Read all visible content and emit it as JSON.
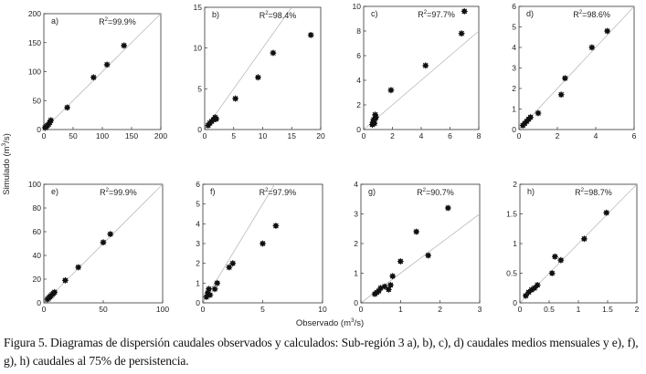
{
  "figure": {
    "xlabel": "Observado (m",
    "xlabel_sup": "3",
    "xlabel_tail": "/s)",
    "ylabel": "Simulado (m",
    "ylabel_sup": "3",
    "ylabel_tail": "/s)",
    "caption": "Figura 5. Diagramas de dispersión caudales observados y calculados: Sub-región 3 a), b), c), d) caudales medios mensuales y e), f), g), h) caudales al 75% de persistencia."
  },
  "colors": {
    "points": "#111111",
    "reference_line": "#bbbbbb",
    "axes": "#333333"
  },
  "chart_data": [
    {
      "type": "scatter",
      "label": "a)",
      "r2_prefix": "R",
      "r2_sup": "2",
      "r2_value": "=99.9%",
      "xlim": [
        0,
        200
      ],
      "ylim": [
        0,
        200
      ],
      "xticks": [
        0,
        50,
        100,
        150,
        200
      ],
      "yticks": [
        0,
        50,
        100,
        150,
        200
      ],
      "reference_line": "1:1",
      "x": [
        2,
        4,
        6,
        8,
        10,
        12,
        40,
        85,
        108,
        137
      ],
      "y": [
        3,
        5,
        7,
        9,
        12,
        16,
        38,
        90,
        112,
        145
      ]
    },
    {
      "type": "scatter",
      "label": "b)",
      "r2_prefix": "R",
      "r2_sup": "2",
      "r2_value": "=98.4%",
      "xlim": [
        0,
        20
      ],
      "ylim": [
        0,
        15
      ],
      "xticks": [
        0,
        5,
        10,
        15,
        20
      ],
      "yticks": [
        0,
        5,
        10,
        15
      ],
      "reference_line": "1:1",
      "x": [
        0.6,
        0.9,
        1.2,
        1.5,
        1.8,
        2.0,
        5.3,
        9.2,
        11.8,
        18.3
      ],
      "y": [
        0.5,
        0.8,
        1.0,
        1.2,
        1.5,
        1.3,
        3.8,
        6.4,
        9.4,
        11.6
      ]
    },
    {
      "type": "scatter",
      "label": "c)",
      "r2_prefix": "R",
      "r2_sup": "2",
      "r2_value": "=97.7%",
      "xlim": [
        0,
        8
      ],
      "ylim": [
        0,
        10
      ],
      "xticks": [
        0,
        2,
        4,
        6,
        8
      ],
      "yticks": [
        0,
        2,
        4,
        6,
        8,
        10
      ],
      "reference_line": "1:1",
      "x": [
        0.6,
        0.65,
        0.7,
        0.75,
        0.8,
        0.8,
        0.85,
        1.9,
        4.3,
        6.8,
        7.0
      ],
      "y": [
        0.4,
        0.6,
        0.8,
        0.5,
        0.9,
        1.2,
        1.0,
        3.2,
        5.2,
        7.8,
        9.6
      ]
    },
    {
      "type": "scatter",
      "label": "d)",
      "r2_prefix": "R",
      "r2_sup": "2",
      "r2_value": "=98.6%",
      "xlim": [
        0,
        6
      ],
      "ylim": [
        0,
        6
      ],
      "xticks": [
        0,
        2,
        4,
        6
      ],
      "yticks": [
        0,
        1,
        2,
        3,
        4,
        5,
        6
      ],
      "reference_line": "1:1",
      "x": [
        0.2,
        0.3,
        0.4,
        0.5,
        0.6,
        1.0,
        2.2,
        2.4,
        3.8,
        4.6
      ],
      "y": [
        0.2,
        0.3,
        0.4,
        0.5,
        0.6,
        0.8,
        1.7,
        2.5,
        4.0,
        4.8
      ]
    },
    {
      "type": "scatter",
      "label": "e)",
      "r2_prefix": "R",
      "r2_sup": "2",
      "r2_value": "=99.9%",
      "xlim": [
        0,
        100
      ],
      "ylim": [
        0,
        100
      ],
      "xticks": [
        0,
        50,
        100
      ],
      "yticks": [
        0,
        20,
        40,
        60,
        80,
        100
      ],
      "reference_line": "1:1",
      "x": [
        3,
        4,
        5,
        6,
        7,
        8,
        9,
        18,
        29,
        50,
        56
      ],
      "y": [
        3,
        4,
        5,
        6,
        7,
        8,
        9,
        19,
        30,
        51,
        58
      ]
    },
    {
      "type": "scatter",
      "label": "f)",
      "r2_prefix": "R",
      "r2_sup": "2",
      "r2_value": "=97.9%",
      "xlim": [
        0,
        10
      ],
      "ylim": [
        0,
        6
      ],
      "xticks": [
        0,
        5,
        10
      ],
      "yticks": [
        0,
        1,
        2,
        3,
        4,
        5,
        6
      ],
      "reference_line": "1:1",
      "x": [
        0.3,
        0.4,
        0.5,
        0.6,
        1.0,
        1.2,
        2.2,
        2.5,
        5.0,
        6.1
      ],
      "y": [
        0.3,
        0.5,
        0.7,
        0.4,
        0.7,
        1.0,
        1.8,
        2.0,
        3.0,
        3.9
      ]
    },
    {
      "type": "scatter",
      "label": "g)",
      "r2_prefix": "R",
      "r2_sup": "2",
      "r2_value": "=90.7%",
      "xlim": [
        0,
        3
      ],
      "ylim": [
        0,
        4
      ],
      "xticks": [
        0,
        1,
        2,
        3
      ],
      "yticks": [
        0,
        1,
        2,
        3,
        4
      ],
      "reference_line": "1:1",
      "x": [
        0.35,
        0.4,
        0.45,
        0.5,
        0.6,
        0.7,
        0.75,
        0.8,
        1.0,
        1.4,
        1.7,
        2.2
      ],
      "y": [
        0.3,
        0.35,
        0.4,
        0.5,
        0.55,
        0.45,
        0.6,
        0.9,
        1.4,
        2.4,
        1.6,
        3.2
      ]
    },
    {
      "type": "scatter",
      "label": "h)",
      "r2_prefix": "R",
      "r2_sup": "2",
      "r2_value": "=98.7%",
      "xlim": [
        0,
        2
      ],
      "ylim": [
        0,
        2
      ],
      "xticks": [
        0,
        0.5,
        1,
        1.5,
        2
      ],
      "yticks": [
        0,
        0.5,
        1,
        1.5,
        2
      ],
      "reference_line": "1:1",
      "x": [
        0.1,
        0.15,
        0.2,
        0.25,
        0.3,
        0.55,
        0.6,
        0.7,
        1.1,
        1.48
      ],
      "y": [
        0.12,
        0.18,
        0.22,
        0.25,
        0.3,
        0.5,
        0.78,
        0.72,
        1.08,
        1.52
      ]
    }
  ]
}
